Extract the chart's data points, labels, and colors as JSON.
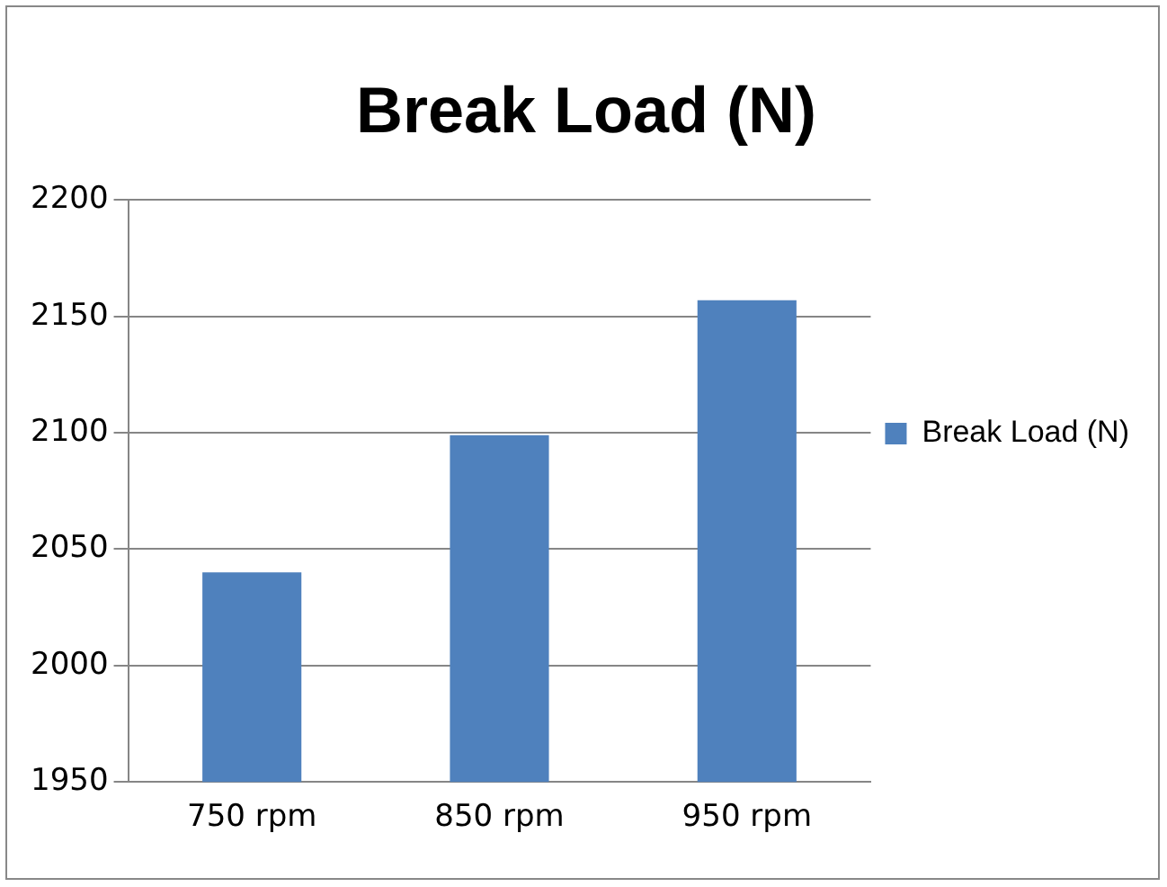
{
  "chart_data": {
    "type": "bar",
    "title": "Break Load (N)",
    "categories": [
      "750 rpm",
      "850 rpm",
      "950 rpm"
    ],
    "series": [
      {
        "name": "Break Load (N)",
        "color": "#4f81bd",
        "values": [
          2040,
          2099,
          2157
        ]
      }
    ],
    "ylim": [
      1950,
      2200
    ],
    "yticks": [
      1950,
      2000,
      2050,
      2100,
      2150,
      2200
    ],
    "grid": "y",
    "legend": "right"
  }
}
